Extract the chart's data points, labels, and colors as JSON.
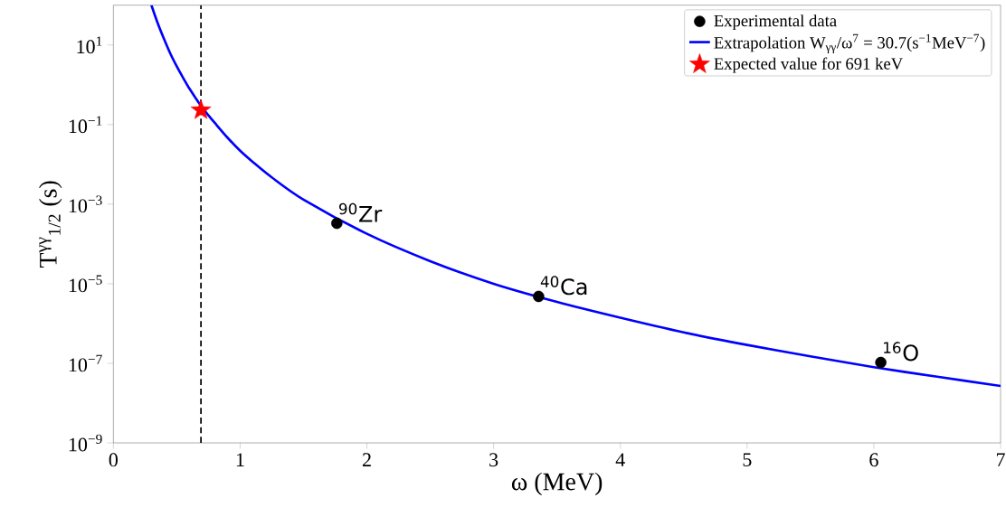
{
  "chart_data": {
    "type": "scatter",
    "xlabel": "ω (MeV)",
    "ylabel": "T$^{γγ}$$_{1/2}$ (s)",
    "log": "y",
    "xlim": [
      0,
      7
    ],
    "xticks": [
      0,
      1,
      2,
      3,
      4,
      5,
      6,
      7
    ],
    "ylim": [
      1e-09,
      100
    ],
    "yticks": [
      {
        "value": 1e-09,
        "label": "10$^{−9}$"
      },
      {
        "value": 1e-07,
        "label": "10$^{−7}$"
      },
      {
        "value": 1e-05,
        "label": "10$^{−5}$"
      },
      {
        "value": 0.001,
        "label": "10$^{−3}$"
      },
      {
        "value": 0.1,
        "label": "10$^{−1}$"
      },
      {
        "value": 10,
        "label": "10$^{1}$"
      }
    ],
    "legend": "top right",
    "series": [
      {
        "name": "Experimental data",
        "marker": "circle",
        "color": "#000000",
        "x": [
          1.763,
          3.355,
          6.055
        ],
        "values": [
          0.00033,
          4.8e-06,
          1.05e-07
        ]
      },
      {
        "name": "Extrapolation W$_{γγ}$/ω$^{7}$ = 30.7(s$^{−1}$MeV$^{−7}$)",
        "type": "line",
        "marker": "none",
        "line_style": "solid",
        "color": "#0000ff",
        "x": [
          0.3,
          0.35,
          0.4,
          0.45,
          0.5,
          0.55,
          0.6,
          0.65,
          0.7,
          0.75,
          0.8,
          0.9,
          1,
          1.1,
          1.25,
          1.5,
          2,
          2.5,
          3,
          3.5,
          4,
          4.5,
          5,
          5.5,
          6,
          6.5,
          7
        ],
        "values": [
          100,
          35,
          14,
          6.0,
          2.9,
          1.5,
          0.8,
          0.46,
          0.27,
          0.17,
          0.11,
          0.047,
          0.022,
          0.0115,
          0.0047,
          0.0013,
          0.00018,
          3.7e-05,
          1e-05,
          3.5e-06,
          1.4e-06,
          6e-07,
          2.9e-07,
          1.5e-07,
          8e-08,
          4.6e-08,
          2.7e-08
        ]
      },
      {
        "name": "Expected value for 691 keV",
        "marker": "star",
        "color": "#ff0000",
        "x": [
          0.691
        ],
        "values": [
          0.23
        ]
      }
    ],
    "ref_lines": [
      {
        "axis": "x",
        "value": 0.691,
        "color": "#000000",
        "line_style": "dashed"
      }
    ],
    "annotations": [
      {
        "text": "$^{90}$Zr",
        "x": 1.763,
        "y": 0.00033
      },
      {
        "text": "$^{40}$Ca",
        "x": 3.355,
        "y": 4.8e-06
      },
      {
        "text": "$^{16}$O",
        "x": 6.055,
        "y": 1.05e-07
      }
    ]
  }
}
